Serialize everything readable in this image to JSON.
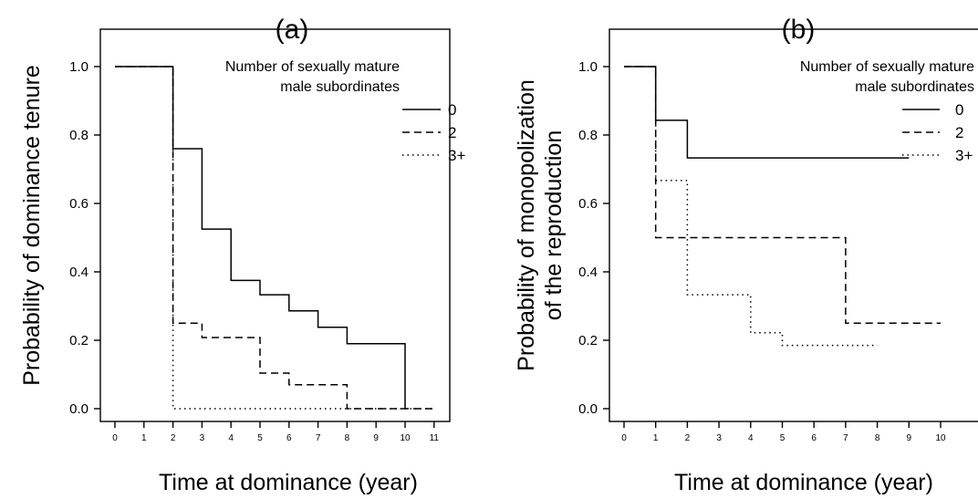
{
  "chart_data": [
    {
      "type": "line",
      "title": "(a)",
      "xlabel": "Time at dominance (year)",
      "ylabel": "Probability of dominance tenure",
      "xlim": [
        0,
        11
      ],
      "ylim": [
        0,
        1
      ],
      "xticks": [
        0,
        1,
        2,
        3,
        4,
        5,
        6,
        7,
        8,
        9,
        10,
        11
      ],
      "yticks": [
        "0.0",
        "0.2",
        "0.4",
        "0.6",
        "0.8",
        "1.0"
      ],
      "legend": {
        "title_lines": [
          "Number of sexually mature",
          "male subordinates"
        ],
        "placement": "top-right"
      },
      "series": [
        {
          "name": "0",
          "style": "solid",
          "x": [
            0,
            2,
            3,
            4,
            5,
            6,
            7,
            8,
            10
          ],
          "y": [
            1.0,
            0.76,
            0.525,
            0.375,
            0.333,
            0.286,
            0.238,
            0.19,
            0.0
          ],
          "x_end": 10
        },
        {
          "name": "2",
          "style": "dashed",
          "x": [
            0,
            2,
            3,
            5,
            6,
            8
          ],
          "y": [
            1.0,
            0.25,
            0.208,
            0.104,
            0.07,
            0.0
          ],
          "x_end": 11
        },
        {
          "name": "3+",
          "style": "dotted",
          "x": [
            0,
            2
          ],
          "y": [
            1.0,
            0.0
          ],
          "x_end": 11
        }
      ]
    },
    {
      "type": "line",
      "title": "(b)",
      "xlabel": "Time at dominance (year)",
      "ylabel": "Probability of monopolization\nof the reproduction",
      "xlim": [
        0,
        10
      ],
      "ylim": [
        0,
        1
      ],
      "xticks": [
        0,
        1,
        2,
        3,
        4,
        5,
        6,
        7,
        8,
        9,
        10
      ],
      "yticks": [
        "0.0",
        "0.2",
        "0.4",
        "0.6",
        "0.8",
        "1.0"
      ],
      "legend": {
        "title_lines": [
          "Number of sexually mature",
          "male subordinates"
        ],
        "placement": "top-right"
      },
      "series": [
        {
          "name": "0",
          "style": "solid",
          "x": [
            0,
            1,
            2
          ],
          "y": [
            1.0,
            0.843,
            0.733
          ],
          "x_end": 9
        },
        {
          "name": "2",
          "style": "dashed",
          "x": [
            0,
            1,
            7
          ],
          "y": [
            1.0,
            0.5,
            0.25
          ],
          "x_end": 10
        },
        {
          "name": "3+",
          "style": "dotted",
          "x": [
            0,
            1,
            2,
            4,
            5
          ],
          "y": [
            1.0,
            0.667,
            0.333,
            0.222,
            0.185
          ],
          "x_end": 8
        }
      ]
    }
  ]
}
